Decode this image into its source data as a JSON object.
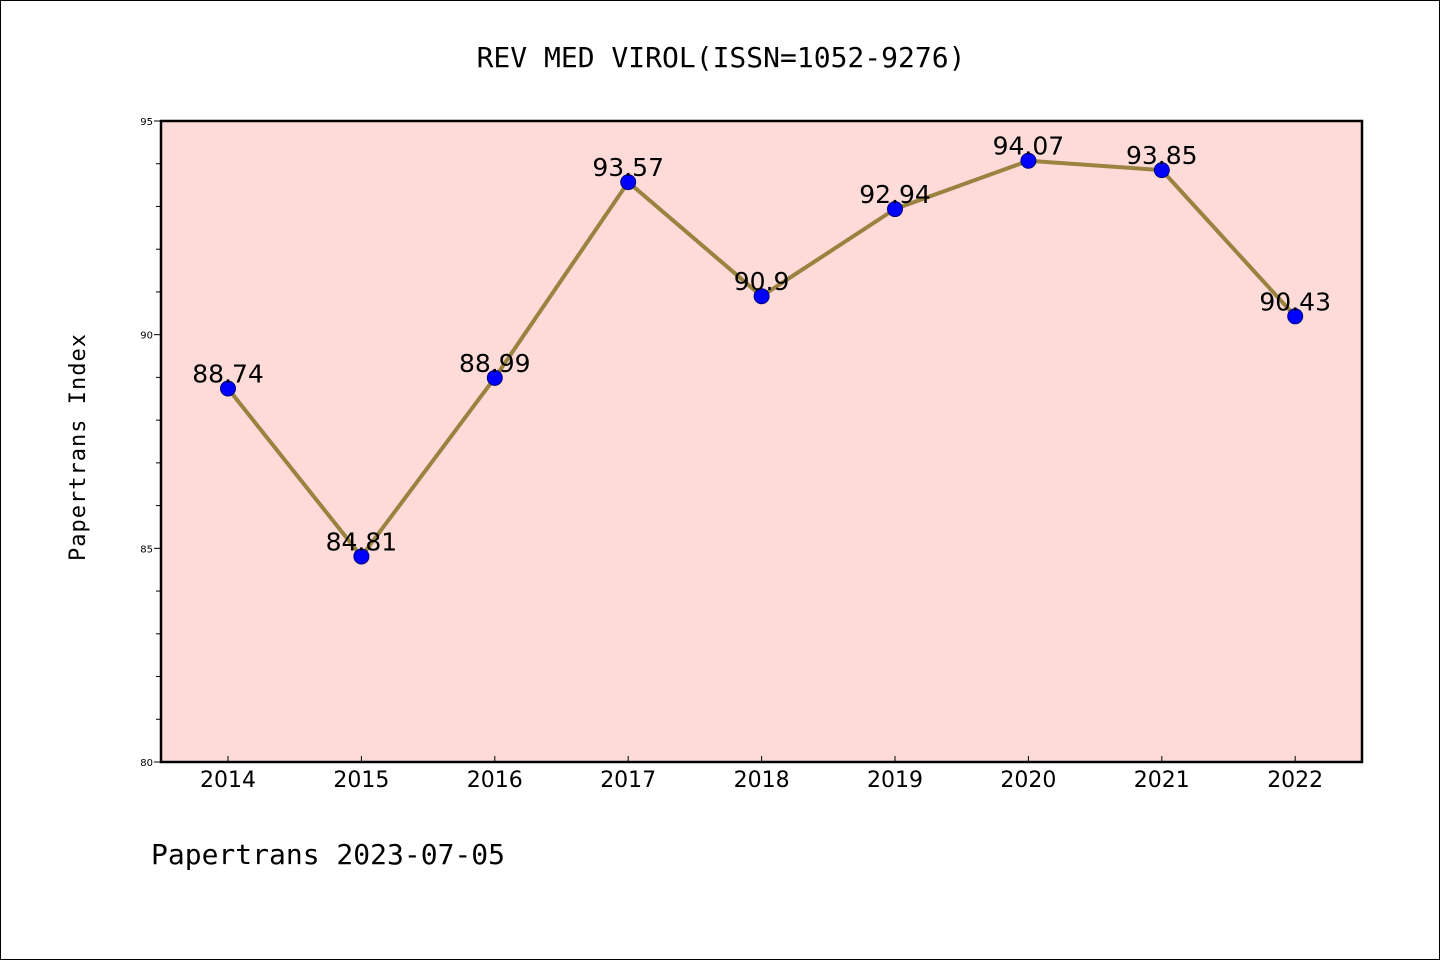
{
  "chart_data": {
    "type": "line",
    "title": "REV MED VIROL(ISSN=1052-9276)",
    "ylabel": "Papertrans Index",
    "xlabel": "",
    "footer": "Papertrans 2023-07-05",
    "categories": [
      "2014",
      "2015",
      "2016",
      "2017",
      "2018",
      "2019",
      "2020",
      "2021",
      "2022"
    ],
    "values": [
      88.74,
      84.81,
      88.99,
      93.57,
      90.9,
      92.94,
      94.07,
      93.85,
      90.43
    ],
    "data_labels": [
      "88.74",
      "84.81",
      "88.99",
      "93.57",
      "90.9",
      "92.94",
      "94.07",
      "93.85",
      "90.43"
    ],
    "ylim": [
      80,
      95
    ],
    "yticks": [
      "80",
      "85",
      "90",
      "95"
    ],
    "grid": false,
    "colors": {
      "plot_background": "#fddbd8",
      "line": "#9a8240",
      "marker": "#0000ff",
      "marker_edge": "#00007a"
    }
  }
}
